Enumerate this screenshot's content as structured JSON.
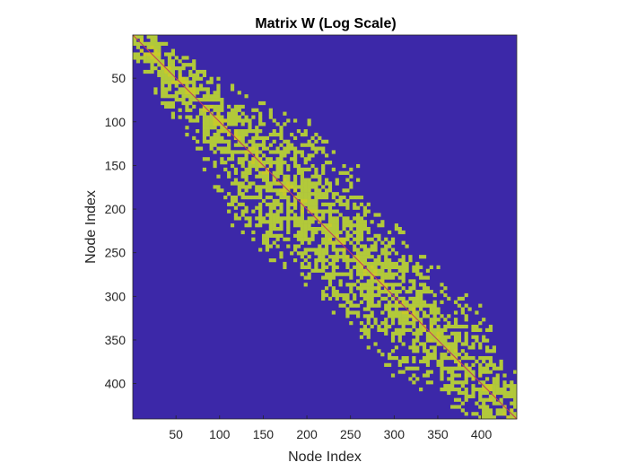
{
  "chart_data": {
    "type": "heatmap",
    "title": "Matrix W (Log Scale)",
    "xlabel": "Node Index",
    "ylabel": "Node Index",
    "n_nodes": 440,
    "xlim": [
      0.5,
      440.5
    ],
    "ylim": [
      0.5,
      440.5
    ],
    "y_direction": "reverse",
    "xticks": [
      50,
      100,
      150,
      200,
      250,
      300,
      350,
      400
    ],
    "yticks": [
      50,
      100,
      150,
      200,
      250,
      300,
      350,
      400
    ],
    "colors": {
      "background": "#3c28a8",
      "nonzero": "#b2c93a",
      "high": "#c8ca2a",
      "diagonal": "#c23c5e"
    },
    "band_halfwidth_profile": [
      {
        "index": 1,
        "halfwidth": 20
      },
      {
        "index": 50,
        "halfwidth": 45
      },
      {
        "index": 100,
        "halfwidth": 65
      },
      {
        "index": 150,
        "halfwidth": 110
      },
      {
        "index": 200,
        "halfwidth": 110
      },
      {
        "index": 250,
        "halfwidth": 95
      },
      {
        "index": 300,
        "halfwidth": 90
      },
      {
        "index": 350,
        "halfwidth": 95
      },
      {
        "index": 400,
        "halfwidth": 65
      },
      {
        "index": 440,
        "halfwidth": 45
      }
    ],
    "dense_blocks": [
      {
        "start": 1,
        "end": 30
      },
      {
        "start": 30,
        "end": 70
      },
      {
        "start": 80,
        "end": 125
      },
      {
        "start": 130,
        "end": 160
      },
      {
        "start": 160,
        "end": 215
      },
      {
        "start": 215,
        "end": 260
      },
      {
        "start": 260,
        "end": 300
      },
      {
        "start": 300,
        "end": 330
      },
      {
        "start": 330,
        "end": 370
      },
      {
        "start": 370,
        "end": 400
      },
      {
        "start": 400,
        "end": 440
      }
    ]
  }
}
